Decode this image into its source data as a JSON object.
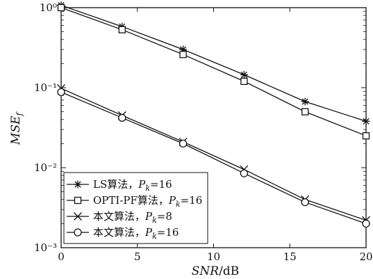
{
  "chart_data": {
    "type": "line",
    "xlabel": "SNR/dB",
    "ylabel": "MSE_f",
    "xlim": [
      0,
      20
    ],
    "ylim": [
      0.001,
      1
    ],
    "y_scale": "log",
    "grid": false,
    "legend_placement": "bottom-left",
    "x_ticks": [
      0,
      5,
      10,
      15,
      20
    ],
    "x_tick_labels": [
      "0",
      "5",
      "10",
      "15",
      "20"
    ],
    "y_ticks": [
      0.001,
      0.01,
      0.1,
      1
    ],
    "y_tick_labels": [
      "10⁻³",
      "10⁻²",
      "10⁻¹",
      "10⁰"
    ],
    "x": [
      0,
      4,
      8,
      12,
      16,
      20
    ],
    "series": [
      {
        "name": "LS算法，Pk=16",
        "marker": "asterisk",
        "values": [
          1.07,
          0.58,
          0.3,
          0.145,
          0.067,
          0.038
        ]
      },
      {
        "name": "OPTI-PF算法，Pk=16",
        "marker": "square",
        "values": [
          1.0,
          0.53,
          0.26,
          0.12,
          0.05,
          0.025
        ]
      },
      {
        "name": "本文算法，Pk=8",
        "marker": "x",
        "values": [
          0.098,
          0.045,
          0.021,
          0.0095,
          0.004,
          0.0022
        ]
      },
      {
        "name": "本文算法，Pk=16",
        "marker": "circle",
        "values": [
          0.088,
          0.042,
          0.02,
          0.0085,
          0.0037,
          0.002
        ]
      }
    ],
    "legend": [
      {
        "prefix": "LS算法，",
        "p": "P",
        "sub": "k",
        "suffix": "=16"
      },
      {
        "prefix": "OPTI-PF算法，",
        "p": "P",
        "sub": "k",
        "suffix": "=16"
      },
      {
        "prefix": "本文算法，",
        "p": "P",
        "sub": "k",
        "suffix": "=8"
      },
      {
        "prefix": "本文算法，",
        "p": "P",
        "sub": "k",
        "suffix": "=16"
      }
    ],
    "xlabel_parts": {
      "italic": "SNR",
      "rest": "/dB"
    },
    "ylabel_parts": {
      "italic": "MSE",
      "sub": "f"
    },
    "colors": {
      "line": "#111111",
      "background": "#ffffff"
    }
  }
}
